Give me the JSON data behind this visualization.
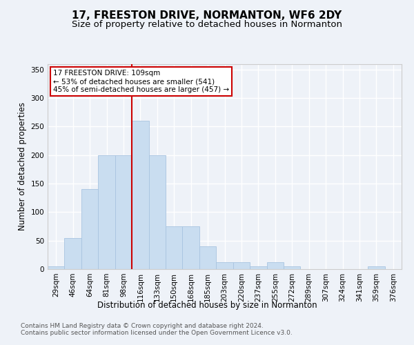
{
  "title": "17, FREESTON DRIVE, NORMANTON, WF6 2DY",
  "subtitle": "Size of property relative to detached houses in Normanton",
  "xlabel": "Distribution of detached houses by size in Normanton",
  "ylabel": "Number of detached properties",
  "categories": [
    "29sqm",
    "46sqm",
    "64sqm",
    "81sqm",
    "98sqm",
    "116sqm",
    "133sqm",
    "150sqm",
    "168sqm",
    "185sqm",
    "203sqm",
    "220sqm",
    "237sqm",
    "255sqm",
    "272sqm",
    "289sqm",
    "307sqm",
    "324sqm",
    "341sqm",
    "359sqm",
    "376sqm"
  ],
  "values": [
    5,
    55,
    140,
    200,
    200,
    260,
    200,
    75,
    75,
    40,
    12,
    12,
    5,
    12,
    5,
    0,
    0,
    0,
    0,
    5,
    0
  ],
  "bar_color": "#c9ddf0",
  "bar_edge_color": "#a8c4e0",
  "vline_index": 4.5,
  "vline_color": "#cc0000",
  "annotation_text": "17 FREESTON DRIVE: 109sqm\n← 53% of detached houses are smaller (541)\n45% of semi-detached houses are larger (457) →",
  "annotation_box_color": "#ffffff",
  "annotation_box_edge_color": "#cc0000",
  "ylim": [
    0,
    360
  ],
  "yticks": [
    0,
    50,
    100,
    150,
    200,
    250,
    300,
    350
  ],
  "footer_text": "Contains HM Land Registry data © Crown copyright and database right 2024.\nContains public sector information licensed under the Open Government Licence v3.0.",
  "bg_color": "#eef2f8",
  "plot_bg_color": "#eef2f8",
  "grid_color": "#ffffff",
  "title_fontsize": 11,
  "subtitle_fontsize": 9.5,
  "axis_label_fontsize": 8.5,
  "tick_fontsize": 7.5,
  "footer_fontsize": 6.5
}
